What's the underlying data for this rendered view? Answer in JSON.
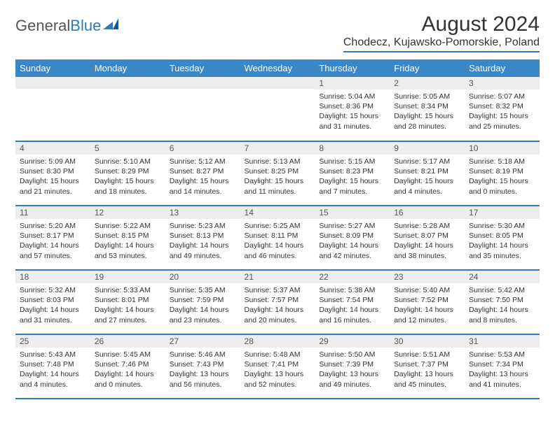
{
  "logo": {
    "text1": "General",
    "text2": "Blue"
  },
  "title": "August 2024",
  "location": "Chodecz, Kujawsko-Pomorskie, Poland",
  "colors": {
    "header_bg": "#3a87c8",
    "header_text": "#ffffff",
    "divider": "#2f7ac0",
    "daynum_bg": "#ededed",
    "text": "#333333"
  },
  "typography": {
    "title_fontsize": 30,
    "location_fontsize": 16,
    "weekday_fontsize": 13,
    "daynum_fontsize": 12,
    "info_fontsize": 10.5
  },
  "weekdays": [
    "Sunday",
    "Monday",
    "Tuesday",
    "Wednesday",
    "Thursday",
    "Friday",
    "Saturday"
  ],
  "calendar": {
    "type": "table",
    "rows": [
      [
        {
          "day": "",
          "info": []
        },
        {
          "day": "",
          "info": []
        },
        {
          "day": "",
          "info": []
        },
        {
          "day": "",
          "info": []
        },
        {
          "day": "1",
          "info": [
            "Sunrise: 5:04 AM",
            "Sunset: 8:36 PM",
            "Daylight: 15 hours and 31 minutes."
          ]
        },
        {
          "day": "2",
          "info": [
            "Sunrise: 5:05 AM",
            "Sunset: 8:34 PM",
            "Daylight: 15 hours and 28 minutes."
          ]
        },
        {
          "day": "3",
          "info": [
            "Sunrise: 5:07 AM",
            "Sunset: 8:32 PM",
            "Daylight: 15 hours and 25 minutes."
          ]
        }
      ],
      [
        {
          "day": "4",
          "info": [
            "Sunrise: 5:09 AM",
            "Sunset: 8:30 PM",
            "Daylight: 15 hours and 21 minutes."
          ]
        },
        {
          "day": "5",
          "info": [
            "Sunrise: 5:10 AM",
            "Sunset: 8:29 PM",
            "Daylight: 15 hours and 18 minutes."
          ]
        },
        {
          "day": "6",
          "info": [
            "Sunrise: 5:12 AM",
            "Sunset: 8:27 PM",
            "Daylight: 15 hours and 14 minutes."
          ]
        },
        {
          "day": "7",
          "info": [
            "Sunrise: 5:13 AM",
            "Sunset: 8:25 PM",
            "Daylight: 15 hours and 11 minutes."
          ]
        },
        {
          "day": "8",
          "info": [
            "Sunrise: 5:15 AM",
            "Sunset: 8:23 PM",
            "Daylight: 15 hours and 7 minutes."
          ]
        },
        {
          "day": "9",
          "info": [
            "Sunrise: 5:17 AM",
            "Sunset: 8:21 PM",
            "Daylight: 15 hours and 4 minutes."
          ]
        },
        {
          "day": "10",
          "info": [
            "Sunrise: 5:18 AM",
            "Sunset: 8:19 PM",
            "Daylight: 15 hours and 0 minutes."
          ]
        }
      ],
      [
        {
          "day": "11",
          "info": [
            "Sunrise: 5:20 AM",
            "Sunset: 8:17 PM",
            "Daylight: 14 hours and 57 minutes."
          ]
        },
        {
          "day": "12",
          "info": [
            "Sunrise: 5:22 AM",
            "Sunset: 8:15 PM",
            "Daylight: 14 hours and 53 minutes."
          ]
        },
        {
          "day": "13",
          "info": [
            "Sunrise: 5:23 AM",
            "Sunset: 8:13 PM",
            "Daylight: 14 hours and 49 minutes."
          ]
        },
        {
          "day": "14",
          "info": [
            "Sunrise: 5:25 AM",
            "Sunset: 8:11 PM",
            "Daylight: 14 hours and 46 minutes."
          ]
        },
        {
          "day": "15",
          "info": [
            "Sunrise: 5:27 AM",
            "Sunset: 8:09 PM",
            "Daylight: 14 hours and 42 minutes."
          ]
        },
        {
          "day": "16",
          "info": [
            "Sunrise: 5:28 AM",
            "Sunset: 8:07 PM",
            "Daylight: 14 hours and 38 minutes."
          ]
        },
        {
          "day": "17",
          "info": [
            "Sunrise: 5:30 AM",
            "Sunset: 8:05 PM",
            "Daylight: 14 hours and 35 minutes."
          ]
        }
      ],
      [
        {
          "day": "18",
          "info": [
            "Sunrise: 5:32 AM",
            "Sunset: 8:03 PM",
            "Daylight: 14 hours and 31 minutes."
          ]
        },
        {
          "day": "19",
          "info": [
            "Sunrise: 5:33 AM",
            "Sunset: 8:01 PM",
            "Daylight: 14 hours and 27 minutes."
          ]
        },
        {
          "day": "20",
          "info": [
            "Sunrise: 5:35 AM",
            "Sunset: 7:59 PM",
            "Daylight: 14 hours and 23 minutes."
          ]
        },
        {
          "day": "21",
          "info": [
            "Sunrise: 5:37 AM",
            "Sunset: 7:57 PM",
            "Daylight: 14 hours and 20 minutes."
          ]
        },
        {
          "day": "22",
          "info": [
            "Sunrise: 5:38 AM",
            "Sunset: 7:54 PM",
            "Daylight: 14 hours and 16 minutes."
          ]
        },
        {
          "day": "23",
          "info": [
            "Sunrise: 5:40 AM",
            "Sunset: 7:52 PM",
            "Daylight: 14 hours and 12 minutes."
          ]
        },
        {
          "day": "24",
          "info": [
            "Sunrise: 5:42 AM",
            "Sunset: 7:50 PM",
            "Daylight: 14 hours and 8 minutes."
          ]
        }
      ],
      [
        {
          "day": "25",
          "info": [
            "Sunrise: 5:43 AM",
            "Sunset: 7:48 PM",
            "Daylight: 14 hours and 4 minutes."
          ]
        },
        {
          "day": "26",
          "info": [
            "Sunrise: 5:45 AM",
            "Sunset: 7:46 PM",
            "Daylight: 14 hours and 0 minutes."
          ]
        },
        {
          "day": "27",
          "info": [
            "Sunrise: 5:46 AM",
            "Sunset: 7:43 PM",
            "Daylight: 13 hours and 56 minutes."
          ]
        },
        {
          "day": "28",
          "info": [
            "Sunrise: 5:48 AM",
            "Sunset: 7:41 PM",
            "Daylight: 13 hours and 52 minutes."
          ]
        },
        {
          "day": "29",
          "info": [
            "Sunrise: 5:50 AM",
            "Sunset: 7:39 PM",
            "Daylight: 13 hours and 49 minutes."
          ]
        },
        {
          "day": "30",
          "info": [
            "Sunrise: 5:51 AM",
            "Sunset: 7:37 PM",
            "Daylight: 13 hours and 45 minutes."
          ]
        },
        {
          "day": "31",
          "info": [
            "Sunrise: 5:53 AM",
            "Sunset: 7:34 PM",
            "Daylight: 13 hours and 41 minutes."
          ]
        }
      ]
    ]
  }
}
